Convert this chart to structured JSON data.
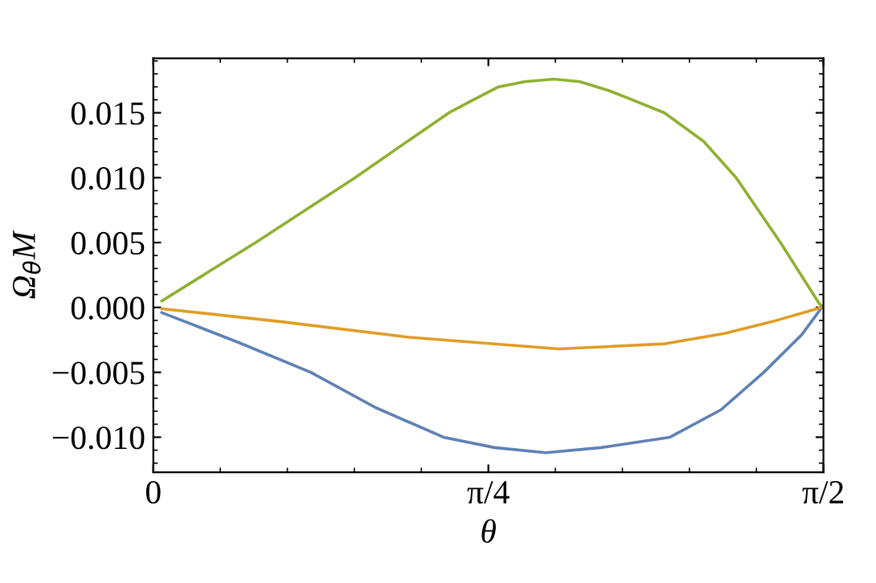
{
  "chart_data": {
    "type": "line",
    "xlabel": "θ",
    "ylabel": "Ω$_{θ}$M",
    "xlim": [
      0,
      1.5708
    ],
    "ylim": [
      -0.0127,
      0.0192
    ],
    "xticks": [
      {
        "value": 0,
        "label": "0"
      },
      {
        "value": 0.7854,
        "label": "π/4"
      },
      {
        "value": 1.5708,
        "label": "π/2"
      }
    ],
    "yticks": [
      {
        "value": -0.01,
        "label": "−0.010"
      },
      {
        "value": -0.005,
        "label": "−0.005"
      },
      {
        "value": 0,
        "label": "0.000"
      },
      {
        "value": 0.005,
        "label": "0.005"
      },
      {
        "value": 0.01,
        "label": "0.010"
      },
      {
        "value": 0.015,
        "label": "0.015"
      }
    ],
    "grid": false,
    "legend": false,
    "marker": "none",
    "line_style": "solid",
    "series": [
      {
        "color": "#5e81b5",
        "x": [
          0.02,
          0.2,
          0.369,
          0.52,
          0.68,
          0.8,
          0.92,
          1.05,
          1.211,
          1.33,
          1.431,
          1.52,
          1.567
        ],
        "values": [
          -0.0004,
          -0.0027,
          -0.005,
          -0.0077,
          -0.01,
          -0.0108,
          -0.0112,
          -0.0108,
          -0.01,
          -0.0079,
          -0.005,
          -0.0021,
          0.0
        ]
      },
      {
        "color": "#e19c24",
        "x": [
          0.02,
          0.3,
          0.6,
          0.95,
          1.2,
          1.339,
          1.45,
          1.567
        ],
        "values": [
          -0.0001,
          -0.0011,
          -0.0023,
          -0.0032,
          -0.0028,
          -0.002,
          -0.0011,
          0.0
        ]
      },
      {
        "color": "#8fb032",
        "x": [
          0.02,
          0.24,
          0.473,
          0.6,
          0.693,
          0.75,
          0.809,
          0.87,
          0.939,
          1.0,
          1.069,
          1.13,
          1.198,
          1.29,
          1.366,
          1.47,
          1.561,
          1.5708
        ],
        "values": [
          0.0005,
          0.005,
          0.01,
          0.0129,
          0.015,
          0.016,
          0.017,
          0.0174,
          0.0176,
          0.0174,
          0.0167,
          0.0159,
          0.015,
          0.0128,
          0.01,
          0.005,
          0.0003,
          0.0
        ]
      }
    ]
  }
}
